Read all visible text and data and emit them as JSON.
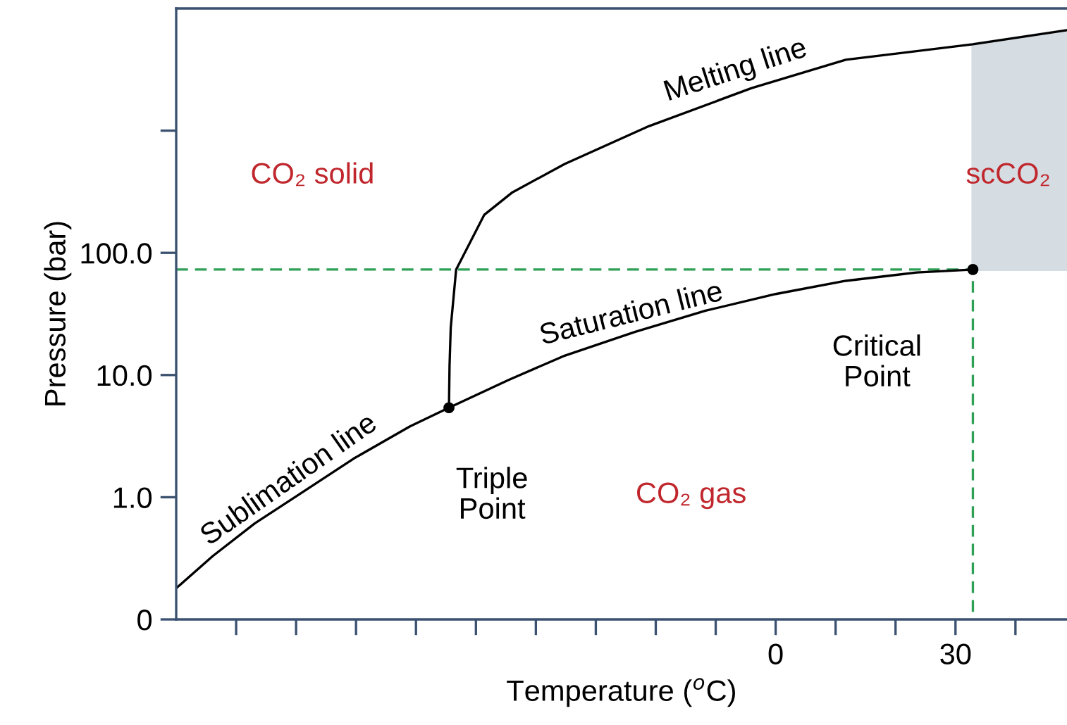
{
  "chart_data": {
    "type": "line",
    "xlabel": "Temperature ($^{o}$C)",
    "ylabel": "Pressure (bar)",
    "log": "y",
    "grid": false,
    "legend": false,
    "xlim": [
      -100,
      48.6
    ],
    "ylim": [
      0.1,
      10000
    ],
    "xticks": [
      {
        "value": -90,
        "label": null
      },
      {
        "value": -80,
        "label": null
      },
      {
        "value": -70,
        "label": null
      },
      {
        "value": -60,
        "label": null
      },
      {
        "value": -50,
        "label": null
      },
      {
        "value": -40,
        "label": null
      },
      {
        "value": -30,
        "label": null
      },
      {
        "value": -20,
        "label": null
      },
      {
        "value": -10,
        "label": null
      },
      0,
      {
        "value": 10,
        "label": null
      },
      {
        "value": 20,
        "label": null
      },
      30,
      {
        "value": 40,
        "label": null
      }
    ],
    "yticks": [
      {
        "value": 0.1,
        "label": "0"
      },
      {
        "value": 1,
        "label": "1.0"
      },
      {
        "value": 10,
        "label": "10.0"
      },
      {
        "value": 100,
        "label": "100.0"
      },
      {
        "value": 1000,
        "label": null
      }
    ],
    "series": [
      {
        "color": "#2ea055",
        "line_style": "dashed",
        "x": [
          -100,
          32.9,
          32.9
        ],
        "values": [
          73,
          73,
          0.1
        ]
      },
      {
        "color": "#000000",
        "line_style": "solid",
        "x": [
          -100,
          -93.9,
          -86.9,
          -79.8,
          -70.4,
          -61.0,
          -54.5
        ],
        "values": [
          0.18,
          0.33,
          0.61,
          1.03,
          2.07,
          3.8,
          5.4
        ]
      },
      {
        "color": "#000000",
        "line_style": "solid",
        "x": [
          -54.5,
          -44.6,
          -35.2,
          -23.5,
          -11.7,
          0,
          11.7,
          23.5,
          32.9
        ],
        "values": [
          5.4,
          9.1,
          14.4,
          22.5,
          33.6,
          46,
          59,
          69,
          73
        ]
      },
      {
        "color": "#000000",
        "line_style": "solid",
        "x": [
          -54.5,
          -54.4,
          -54.2,
          -53.3,
          -48.6,
          -43.9,
          -35.2,
          -21.1,
          -4.0,
          11.7,
          32.9,
          48.6
        ],
        "values": [
          5.4,
          11.9,
          24.5,
          73,
          205,
          313,
          533,
          1090,
          2230,
          3800,
          5090,
          6640
        ],
        "lower": [
          null,
          null,
          null,
          null,
          null,
          null,
          null,
          null,
          null,
          null,
          73,
          73
        ],
        "upper": [
          null,
          null,
          null,
          null,
          null,
          null,
          null,
          null,
          null,
          null,
          5090,
          6640
        ]
      },
      {
        "type": "scatter",
        "color": "#000000",
        "marker": "circle",
        "x": [
          -54.5,
          32.9
        ],
        "values": [
          5.4,
          73
        ]
      }
    ],
    "annotations": [
      "CO₂ solid",
      "scCO₂",
      "CO₂ gas",
      {
        "text": "Triple\nPoint",
        "x": -54.5,
        "y": 5.4
      },
      {
        "text": "Critical\nPoint",
        "x": 32.9,
        "y": 73
      },
      {
        "text": "Melting line",
        "x": -4.0,
        "y": 2230
      },
      {
        "text": "Saturation line",
        "x": -23.5,
        "y": 22.5
      },
      {
        "text": "Sublimation line",
        "x": -79.8,
        "y": 1.03
      }
    ]
  }
}
